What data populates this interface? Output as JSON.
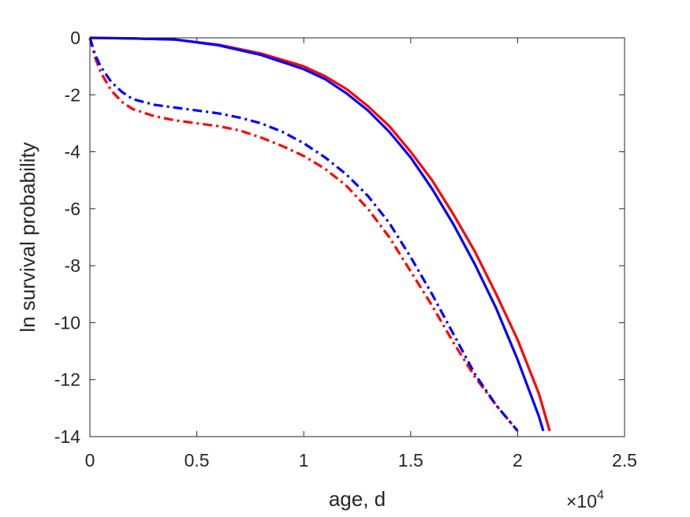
{
  "chart_data": {
    "type": "line",
    "xlabel": "age, d",
    "ylabel": "ln survival probability",
    "x_exponent_base": "×10",
    "x_exponent_power": "4",
    "x_tick_values": [
      0,
      5000,
      10000,
      15000,
      20000,
      25000
    ],
    "x_tick_labels": [
      "0",
      "0.5",
      "1",
      "1.5",
      "2",
      "2.5"
    ],
    "y_tick_values": [
      0,
      -2,
      -4,
      -6,
      -8,
      -10,
      -12,
      -14
    ],
    "y_tick_labels": [
      "0",
      "-2",
      "-4",
      "-6",
      "-8",
      "-10",
      "-12",
      "-14"
    ],
    "xlim": [
      0,
      25000
    ],
    "ylim": [
      -14,
      0
    ],
    "grid": false,
    "series": [
      {
        "color": "#ff0000",
        "style": "solid",
        "x": [
          0,
          2000,
          4000,
          6000,
          8000,
          10000,
          11000,
          12000,
          13000,
          14000,
          15000,
          16000,
          17000,
          18000,
          19000,
          20000,
          21000,
          21500
        ],
        "y": [
          0,
          -0.02,
          -0.06,
          -0.24,
          -0.55,
          -1.0,
          -1.35,
          -1.8,
          -2.4,
          -3.1,
          -4.0,
          -5.0,
          -6.2,
          -7.5,
          -9.0,
          -10.6,
          -12.5,
          -13.8
        ]
      },
      {
        "color": "#0000ff",
        "style": "solid",
        "x": [
          0,
          2000,
          4000,
          6000,
          8000,
          10000,
          11000,
          12000,
          13000,
          14000,
          15000,
          16000,
          17000,
          18000,
          19000,
          20000,
          21000,
          21200
        ],
        "y": [
          0,
          -0.02,
          -0.06,
          -0.26,
          -0.6,
          -1.1,
          -1.45,
          -1.95,
          -2.55,
          -3.3,
          -4.2,
          -5.3,
          -6.55,
          -7.95,
          -9.5,
          -11.3,
          -13.3,
          -13.8
        ]
      },
      {
        "color": "#ff0000",
        "style": "dashdot",
        "x": [
          0,
          250,
          500,
          1000,
          1500,
          2000,
          3000,
          4000,
          5000,
          6000,
          7000,
          8000,
          9000,
          10000,
          11000,
          12000,
          13000,
          14000,
          15000,
          16000,
          17000,
          18000,
          19000,
          20000
        ],
        "y": [
          0,
          -0.7,
          -1.2,
          -1.85,
          -2.25,
          -2.5,
          -2.75,
          -2.9,
          -3.0,
          -3.1,
          -3.25,
          -3.5,
          -3.8,
          -4.15,
          -4.6,
          -5.2,
          -6.0,
          -7.0,
          -8.2,
          -9.4,
          -10.7,
          -11.9,
          -12.9,
          -13.8
        ]
      },
      {
        "color": "#0000ff",
        "style": "dashdot",
        "x": [
          0,
          250,
          500,
          1000,
          1500,
          2000,
          3000,
          4000,
          5000,
          6000,
          7000,
          8000,
          9000,
          10000,
          11000,
          12000,
          13000,
          14000,
          15000,
          16000,
          17000,
          18000,
          19000,
          20000
        ],
        "y": [
          0,
          -0.6,
          -1.0,
          -1.55,
          -1.9,
          -2.15,
          -2.35,
          -2.45,
          -2.55,
          -2.65,
          -2.8,
          -3.0,
          -3.3,
          -3.7,
          -4.2,
          -4.8,
          -5.55,
          -6.5,
          -7.7,
          -9.0,
          -10.4,
          -11.8,
          -12.9,
          -13.8
        ]
      }
    ]
  },
  "colors": {
    "axis": "#262626",
    "background": "#ffffff"
  }
}
